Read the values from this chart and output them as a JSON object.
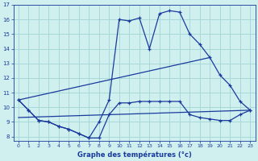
{
  "title": "Graphe des températures (°c)",
  "bg_color": "#d0f0f0",
  "grid_color": "#a8d8d8",
  "line_color": "#1a3a9c",
  "xlim": [
    -0.5,
    23.5
  ],
  "ylim": [
    7.7,
    17.0
  ],
  "xticks": [
    0,
    1,
    2,
    3,
    4,
    5,
    6,
    7,
    8,
    9,
    10,
    11,
    12,
    13,
    14,
    15,
    16,
    17,
    18,
    19,
    20,
    21,
    22,
    23
  ],
  "yticks": [
    8,
    9,
    10,
    11,
    12,
    13,
    14,
    15,
    16,
    17
  ],
  "curve1_x": [
    0,
    1,
    2,
    3,
    4,
    5,
    6,
    7,
    8,
    9,
    10,
    11,
    12,
    13,
    14,
    15,
    16,
    17,
    18,
    19,
    20,
    21,
    22,
    23
  ],
  "curve1_y": [
    10.5,
    9.8,
    9.1,
    9.0,
    8.7,
    8.5,
    8.2,
    7.9,
    9.0,
    10.5,
    16.0,
    15.9,
    16.1,
    14.0,
    16.4,
    16.6,
    16.5,
    15.0,
    14.3,
    13.4,
    12.2,
    11.5,
    10.4,
    9.8
  ],
  "curve2_x": [
    0,
    1,
    2,
    3,
    4,
    5,
    6,
    7,
    8,
    9,
    10,
    11,
    12,
    13,
    14,
    15,
    16,
    17,
    18,
    19,
    20,
    21,
    22,
    23
  ],
  "curve2_y": [
    10.5,
    9.8,
    9.1,
    9.0,
    8.7,
    8.5,
    8.2,
    7.9,
    7.9,
    9.5,
    10.3,
    10.3,
    10.4,
    10.4,
    10.4,
    10.4,
    10.4,
    9.5,
    9.3,
    9.2,
    9.1,
    9.1,
    9.5,
    9.8
  ],
  "trend1_x": [
    0,
    19
  ],
  "trend1_y": [
    10.5,
    13.4
  ],
  "trend2_x": [
    0,
    23
  ],
  "trend2_y": [
    9.3,
    9.8
  ]
}
